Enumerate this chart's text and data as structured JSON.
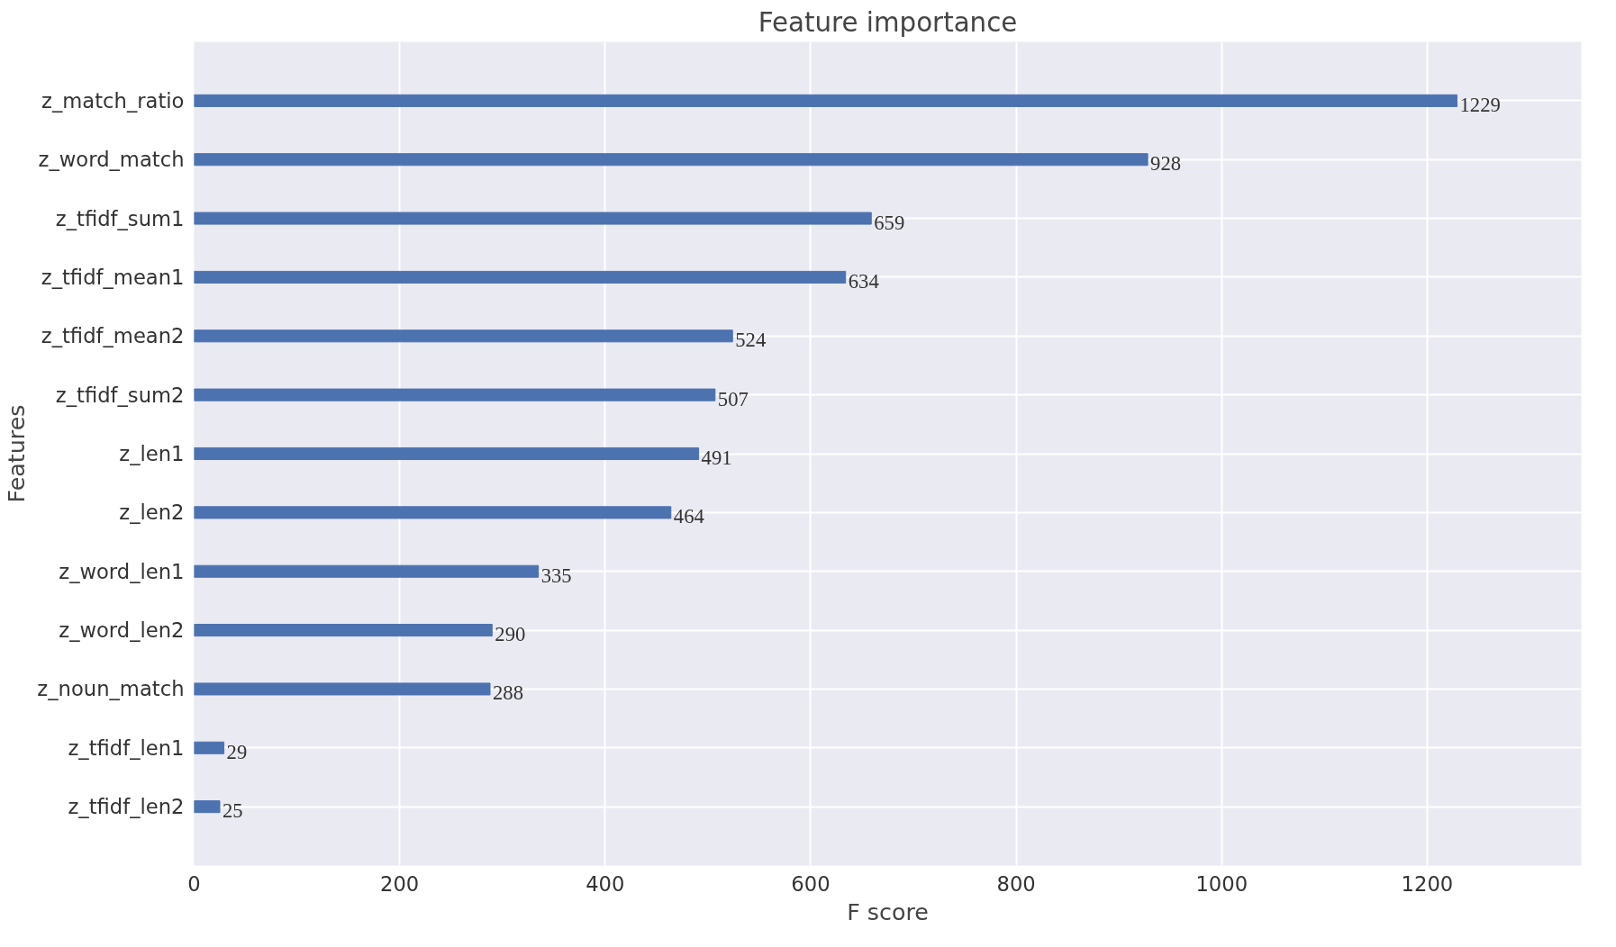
{
  "chart_data": {
    "type": "bar",
    "orientation": "horizontal",
    "title": "Feature importance",
    "xlabel": "F score",
    "ylabel": "Features",
    "categories": [
      "z_match_ratio",
      "z_word_match",
      "z_tfidf_sum1",
      "z_tfidf_mean1",
      "z_tfidf_mean2",
      "z_tfidf_sum2",
      "z_len1",
      "z_len2",
      "z_word_len1",
      "z_word_len2",
      "z_noun_match",
      "z_tfidf_len1",
      "z_tfidf_len2"
    ],
    "values": [
      1229,
      928,
      659,
      634,
      524,
      507,
      491,
      464,
      335,
      290,
      288,
      29,
      25
    ],
    "color": "#4c72b0",
    "xlim": [
      0,
      1350
    ],
    "xticks": [
      0,
      200,
      400,
      600,
      800,
      1000,
      1200
    ],
    "grid": true,
    "data_labels": true
  }
}
